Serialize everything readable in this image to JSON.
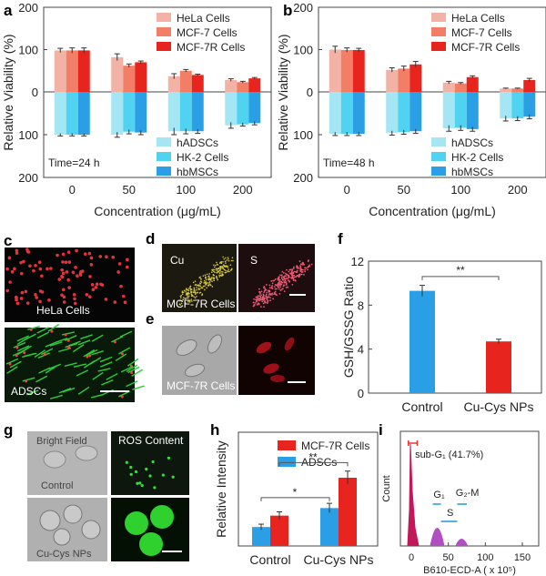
{
  "panels": {
    "a": "a",
    "b": "b",
    "c": "c",
    "d": "d",
    "e": "e",
    "f": "f",
    "g": "g",
    "h": "h",
    "i": "i"
  },
  "colors": {
    "hela": "#f2b2a6",
    "mcf7": "#f27e66",
    "mcf7r": "#e8241f",
    "hadsc": "#a4e6f4",
    "hk2": "#4fd3f0",
    "hbmsc": "#2b9fe6",
    "control_bar": "#2b9fe6",
    "cucys_bar": "#e8241f"
  },
  "chart_data": [
    {
      "id": "a",
      "type": "bar",
      "ylabel": "Relative Viability (%)",
      "xlabel": "Concentration (μg/mL)",
      "yticks_top": [
        "200",
        "100",
        "0"
      ],
      "yticks_bottom": [
        "100",
        "200"
      ],
      "categories": [
        "0",
        "50",
        "100",
        "200"
      ],
      "annotation": "Time=24 h",
      "upper_series": [
        {
          "name": "HeLa Cells",
          "values": [
            98,
            82,
            37,
            28
          ],
          "err": [
            5,
            8,
            6,
            3
          ]
        },
        {
          "name": "MCF-7 Cells",
          "values": [
            98,
            62,
            50,
            23
          ],
          "err": [
            6,
            4,
            3,
            2
          ]
        },
        {
          "name": "MCF-7R Cells",
          "values": [
            98,
            70,
            40,
            32
          ],
          "err": [
            6,
            3,
            2,
            2
          ]
        }
      ],
      "lower_series": [
        {
          "name": "hADSCs",
          "values": [
            100,
            100,
            92,
            78
          ],
          "err": [
            3,
            6,
            8,
            7
          ]
        },
        {
          "name": "HK-2 Cells",
          "values": [
            100,
            93,
            92,
            76
          ],
          "err": [
            3,
            5,
            6,
            4
          ]
        },
        {
          "name": "hbMSCs",
          "values": [
            100,
            95,
            92,
            73
          ],
          "err": [
            3,
            5,
            5,
            4
          ]
        }
      ]
    },
    {
      "id": "b",
      "type": "bar",
      "ylabel": "Relative Viability (%)",
      "xlabel": "Concentration (μg/mL)",
      "yticks_top": [
        "200",
        "100",
        "0"
      ],
      "yticks_bottom": [
        "100",
        "200"
      ],
      "categories": [
        "0",
        "50",
        "100",
        "200"
      ],
      "annotation": "Time=48 h",
      "upper_series": [
        {
          "name": "HeLa Cells",
          "values": [
            100,
            52,
            22,
            8
          ],
          "err": [
            8,
            5,
            3,
            1
          ]
        },
        {
          "name": "MCF-7 Cells",
          "values": [
            99,
            55,
            20,
            8
          ],
          "err": [
            5,
            6,
            2,
            1
          ]
        },
        {
          "name": "MCF-7R Cells",
          "values": [
            99,
            65,
            35,
            28
          ],
          "err": [
            4,
            7,
            3,
            4
          ]
        }
      ],
      "lower_series": [
        {
          "name": "hADSCs",
          "values": [
            98,
            96,
            85,
            62
          ],
          "err": [
            4,
            5,
            7,
            6
          ]
        },
        {
          "name": "HK-2 Cells",
          "values": [
            98,
            94,
            84,
            62
          ],
          "err": [
            4,
            5,
            6,
            5
          ]
        },
        {
          "name": "hbMSCs",
          "values": [
            98,
            92,
            87,
            58
          ],
          "err": [
            4,
            5,
            5,
            5
          ]
        }
      ]
    },
    {
      "id": "f",
      "type": "bar",
      "ylabel": "GSH/GSSG Ratio",
      "categories": [
        "Control",
        "Cu-Cys NPs"
      ],
      "values": [
        9.3,
        4.7
      ],
      "err": [
        0.5,
        0.2
      ],
      "ylim": [
        0,
        12
      ],
      "yticks": [
        "0",
        "4",
        "8",
        "12"
      ],
      "significance": "**"
    },
    {
      "id": "h",
      "type": "bar",
      "ylabel": "Relative Intensity",
      "categories": [
        "Control",
        "Cu-Cys NPs"
      ],
      "series": [
        {
          "name": "ADSCs",
          "values": [
            1.0,
            2.0
          ],
          "err": [
            0.15,
            0.25
          ]
        },
        {
          "name": "MCF-7R Cells",
          "values": [
            1.6,
            3.6
          ],
          "err": [
            0.2,
            0.35
          ]
        }
      ],
      "ylim": [
        0,
        6
      ],
      "significance": [
        "*",
        "**"
      ]
    },
    {
      "id": "i",
      "type": "histogram",
      "xlabel": "B610-ECD-A ( x 10⁵)",
      "ylabel": "Count",
      "xticks": [
        "0",
        "50",
        "100",
        "150"
      ],
      "gates": [
        {
          "label": "sub-G₁ (41.7%)"
        },
        {
          "label": "G₁"
        },
        {
          "label": "S"
        },
        {
          "label": "G₂-M"
        }
      ]
    }
  ],
  "images": {
    "c_top": "HeLa Cells",
    "c_bottom": "ADSCs",
    "d_cu": "Cu",
    "d_s": "S",
    "d_cell": "MCF-7R Cells",
    "e_cell": "MCF-7R Cells",
    "g_bright": "Bright Field",
    "g_ros": "ROS Content",
    "g_control": "Control",
    "g_cucys": "Cu-Cys NPs"
  }
}
